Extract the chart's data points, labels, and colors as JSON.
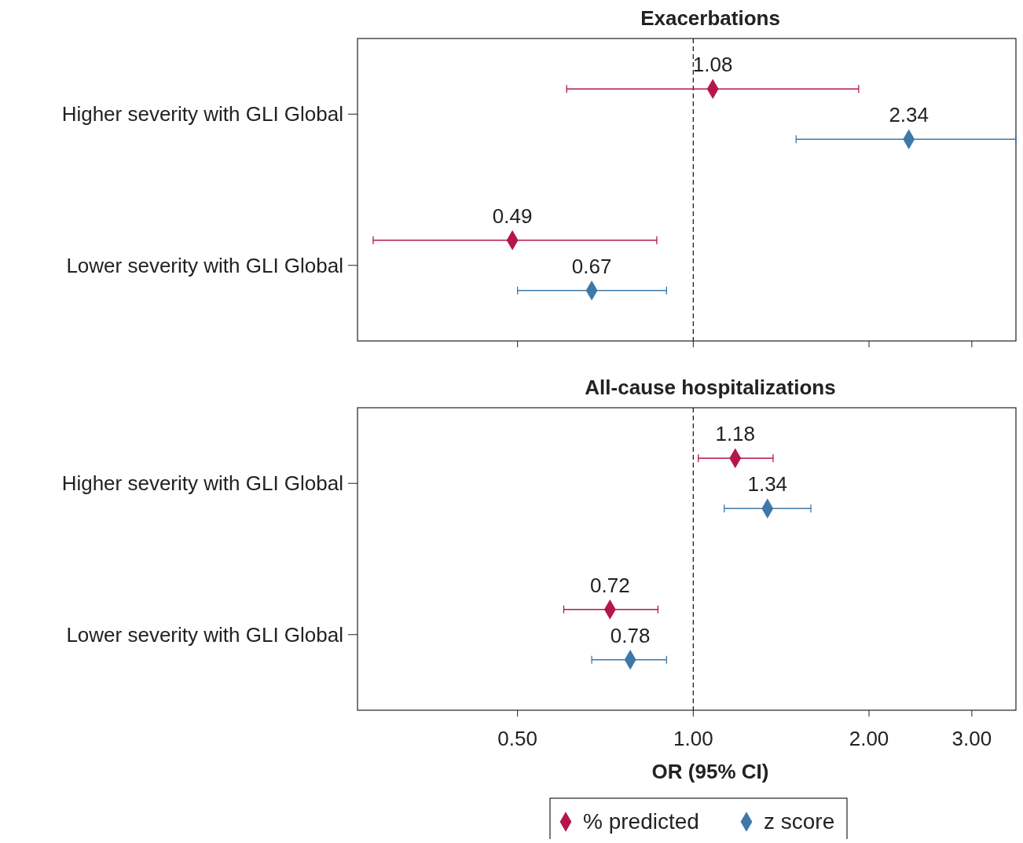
{
  "chart_data": [
    {
      "type": "scatter",
      "title": "Exacerbations",
      "orientation": "horizontal",
      "log": "x",
      "categories": [
        "Higher severity with GLI Global",
        "Lower severity with GLI Global"
      ],
      "xlim": [
        0.266,
        3.57
      ],
      "xticks": [
        {
          "value": 0.5,
          "label": null
        },
        {
          "value": 1,
          "label": null
        },
        {
          "value": 2,
          "label": null
        },
        {
          "value": 3,
          "label": null
        }
      ],
      "tick_labels": "y",
      "marker": "diamond",
      "data_labels": true,
      "grid": false,
      "legend": false,
      "ref_lines": [
        {
          "axis": "x",
          "value": 1,
          "line_style": "dashed"
        }
      ],
      "series": [
        {
          "color": "#b5174b",
          "values": [
            1.08,
            0.49
          ],
          "errors": [
            [
              0.607,
              1.92
            ],
            [
              0.283,
              0.866
            ]
          ]
        },
        {
          "color": "#3e78a8",
          "values": [
            2.34,
            0.67
          ],
          "errors": [
            [
              1.5,
              3.57
            ],
            [
              0.5,
              0.9
            ]
          ]
        }
      ]
    },
    {
      "type": "scatter",
      "title": "All-cause hospitalizations",
      "xlabel": "OR (95% CI)",
      "orientation": "horizontal",
      "log": "x",
      "categories": [
        "Higher severity with GLI Global",
        "Lower severity with GLI Global"
      ],
      "xlim": [
        0.266,
        3.57
      ],
      "xticks": [
        {
          "value": 0.5,
          "label": "0.50"
        },
        {
          "value": 1,
          "label": "1.00"
        },
        {
          "value": 2,
          "label": "2.00"
        },
        {
          "value": 3,
          "label": "3.00"
        }
      ],
      "marker": "diamond",
      "data_labels": true,
      "grid": false,
      "legend": "bottom",
      "ref_lines": [
        {
          "axis": "x",
          "value": 1,
          "line_style": "dashed"
        }
      ],
      "series": [
        {
          "name": "% predicted",
          "color": "#b5174b",
          "values": [
            1.18,
            0.72
          ],
          "errors": [
            [
              1.02,
              1.37
            ],
            [
              0.6,
              0.87
            ]
          ]
        },
        {
          "name": "z score",
          "color": "#3e78a8",
          "values": [
            1.34,
            0.78
          ],
          "errors": [
            [
              1.13,
              1.59
            ],
            [
              0.67,
              0.9
            ]
          ]
        }
      ]
    }
  ]
}
